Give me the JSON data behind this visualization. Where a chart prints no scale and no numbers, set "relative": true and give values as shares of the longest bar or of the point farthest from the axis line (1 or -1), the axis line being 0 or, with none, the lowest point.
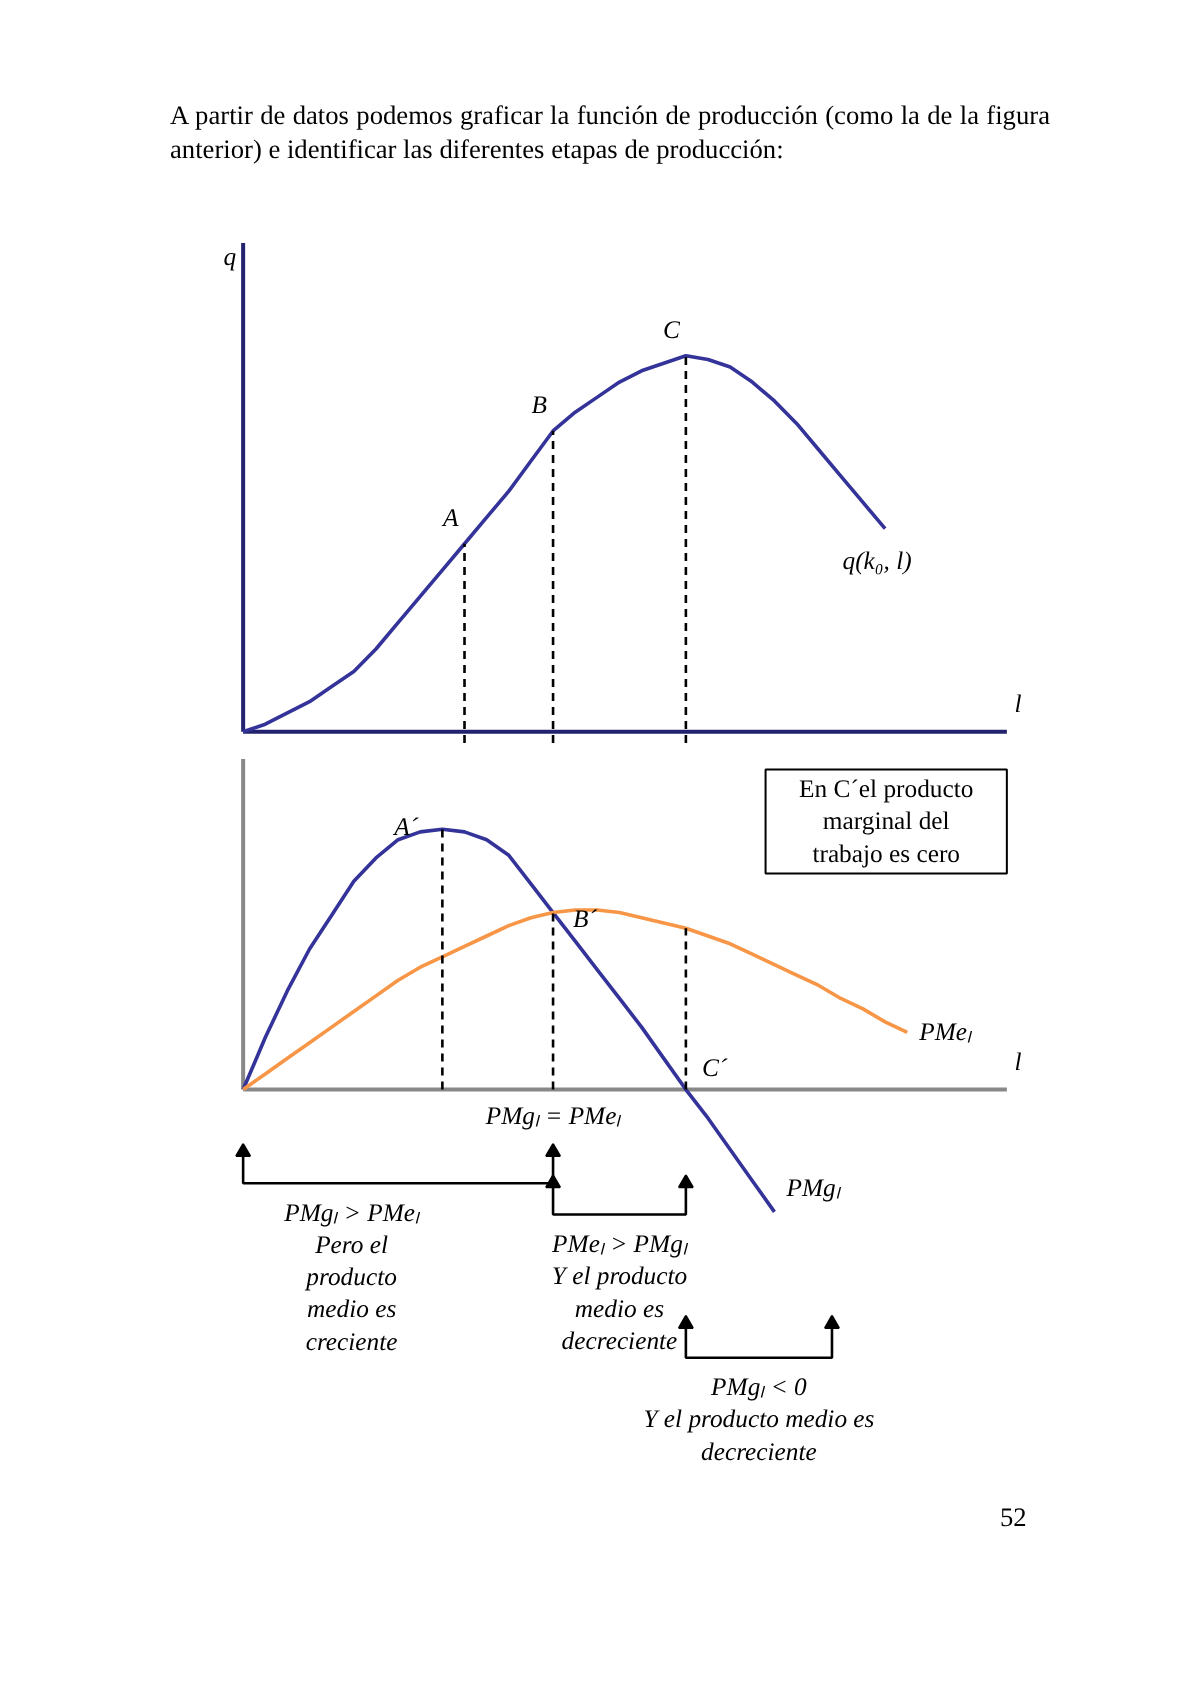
{
  "chart_data": [
    {
      "type": "line",
      "title": "A partir de datos podemos graficar la función de producción (como la de la figura anterior) e identificar las diferentes etapas de producción:",
      "relative": true,
      "tick_labels": false,
      "xlabel": "l",
      "ylabel": "q",
      "categories": [
        null,
        null,
        null,
        null,
        null,
        null,
        null,
        null,
        null,
        null,
        null,
        null,
        null,
        null,
        null,
        null,
        null,
        null,
        null,
        null,
        null,
        null,
        null,
        null,
        null,
        null,
        null,
        null,
        null,
        null,
        null
      ],
      "series": [
        {
          "name": "q(k₀, l)",
          "color": "#333399",
          "values": [
            0,
            0.02,
            0.05,
            0.08,
            0.12,
            0.16,
            0.22,
            0.29,
            0.36,
            0.43,
            0.5,
            0.57,
            0.64,
            0.72,
            0.8,
            0.85,
            0.89,
            0.93,
            0.96,
            0.98,
            1.0,
            0.99,
            0.97,
            0.93,
            0.88,
            0.82,
            0.75,
            0.68,
            0.61,
            0.54,
            null
          ]
        }
      ],
      "annotations": [
        {
          "text": "A",
          "y": 0.5
        },
        {
          "text": "B",
          "y": 0.8
        },
        {
          "text": "C",
          "y": 1.0
        }
      ]
    },
    {
      "type": "line",
      "relative": true,
      "tick_labels": false,
      "xlabel": "l",
      "categories": [
        null,
        null,
        null,
        null,
        null,
        null,
        null,
        null,
        null,
        null,
        null,
        null,
        null,
        null,
        null,
        null,
        null,
        null,
        null,
        null,
        null,
        null,
        null,
        null,
        null,
        null,
        null,
        null,
        null,
        null,
        null
      ],
      "series": [
        {
          "name": "PMgₗ",
          "color": "#333399",
          "values": [
            0,
            0.2,
            0.38,
            0.54,
            0.67,
            0.8,
            0.89,
            0.96,
            0.99,
            1.0,
            0.99,
            0.96,
            0.9,
            0.79,
            0.68,
            0.57,
            0.46,
            0.35,
            0.24,
            0.12,
            0,
            -0.11,
            -0.23,
            -0.35,
            -0.47,
            null,
            null,
            null,
            null,
            null,
            null
          ]
        },
        {
          "name": "PMeₗ",
          "color": "#f79646",
          "values": [
            0,
            0.06,
            0.12,
            0.18,
            0.24,
            0.3,
            0.36,
            0.42,
            0.47,
            0.51,
            0.55,
            0.59,
            0.63,
            0.66,
            0.68,
            0.69,
            0.69,
            0.68,
            0.66,
            0.64,
            0.62,
            0.59,
            0.56,
            0.52,
            0.48,
            0.44,
            0.4,
            0.35,
            0.31,
            0.26,
            0.22
          ]
        }
      ],
      "annotations": [
        {
          "text": "A´",
          "y": 1.0
        },
        {
          "text": "B´",
          "y": 0.68
        },
        "C´",
        "PMgₗ = PMeₗ",
        "En C´el producto\nmarginal del\ntrabajo es cero",
        "PMgₗ > PMeₗ\nPero el\nproducto\nmedio es\ncreciente",
        "PMeₗ > PMgₗ\nY el producto\nmedio es\ndecreciente",
        "PMgₗ < 0\nY el producto medio es\ndecreciente",
        "52"
      ]
    }
  ]
}
